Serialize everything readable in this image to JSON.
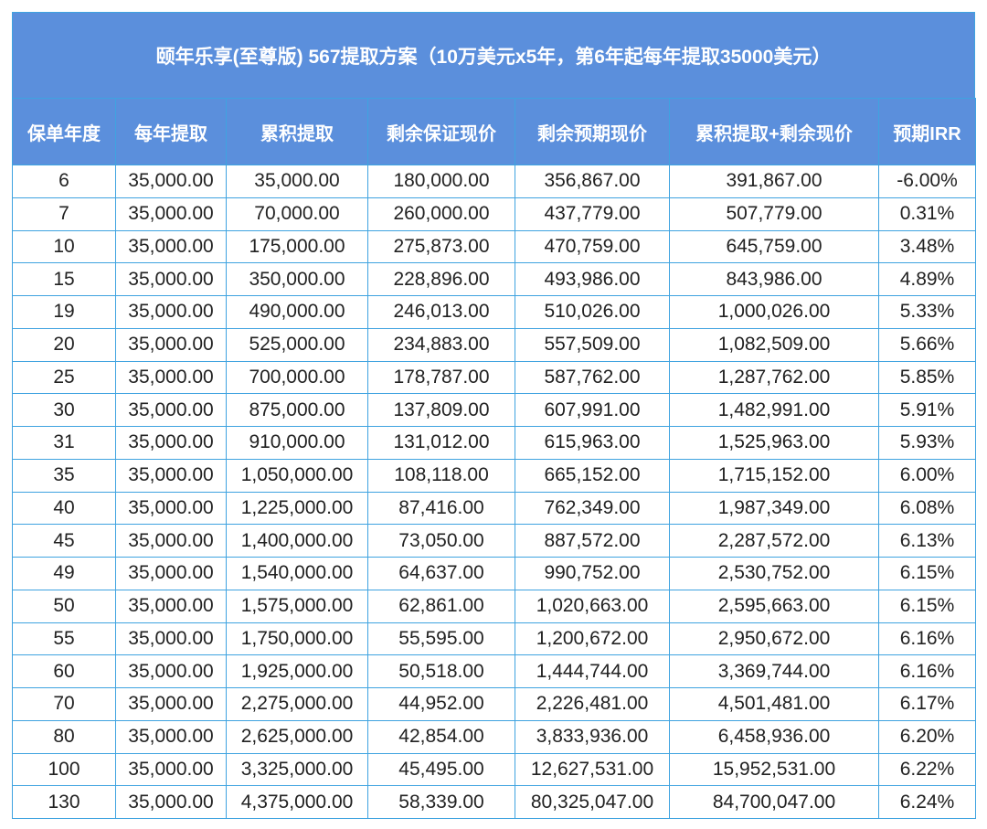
{
  "title": "颐年乐享(至尊版) 567提取方案（10万美元x5年，第6年起每年提取35000美元）",
  "columns": [
    "保单年度",
    "每年提取",
    "累积提取",
    "剩余保证现价",
    "剩余预期现价",
    "累积提取+剩余现价",
    "预期IRR"
  ],
  "rows": [
    [
      "6",
      "35,000.00",
      "35,000.00",
      "180,000.00",
      "356,867.00",
      "391,867.00",
      "-6.00%"
    ],
    [
      "7",
      "35,000.00",
      "70,000.00",
      "260,000.00",
      "437,779.00",
      "507,779.00",
      "0.31%"
    ],
    [
      "10",
      "35,000.00",
      "175,000.00",
      "275,873.00",
      "470,759.00",
      "645,759.00",
      "3.48%"
    ],
    [
      "15",
      "35,000.00",
      "350,000.00",
      "228,896.00",
      "493,986.00",
      "843,986.00",
      "4.89%"
    ],
    [
      "19",
      "35,000.00",
      "490,000.00",
      "246,013.00",
      "510,026.00",
      "1,000,026.00",
      "5.33%"
    ],
    [
      "20",
      "35,000.00",
      "525,000.00",
      "234,883.00",
      "557,509.00",
      "1,082,509.00",
      "5.66%"
    ],
    [
      "25",
      "35,000.00",
      "700,000.00",
      "178,787.00",
      "587,762.00",
      "1,287,762.00",
      "5.85%"
    ],
    [
      "30",
      "35,000.00",
      "875,000.00",
      "137,809.00",
      "607,991.00",
      "1,482,991.00",
      "5.91%"
    ],
    [
      "31",
      "35,000.00",
      "910,000.00",
      "131,012.00",
      "615,963.00",
      "1,525,963.00",
      "5.93%"
    ],
    [
      "35",
      "35,000.00",
      "1,050,000.00",
      "108,118.00",
      "665,152.00",
      "1,715,152.00",
      "6.00%"
    ],
    [
      "40",
      "35,000.00",
      "1,225,000.00",
      "87,416.00",
      "762,349.00",
      "1,987,349.00",
      "6.08%"
    ],
    [
      "45",
      "35,000.00",
      "1,400,000.00",
      "73,050.00",
      "887,572.00",
      "2,287,572.00",
      "6.13%"
    ],
    [
      "49",
      "35,000.00",
      "1,540,000.00",
      "64,637.00",
      "990,752.00",
      "2,530,752.00",
      "6.15%"
    ],
    [
      "50",
      "35,000.00",
      "1,575,000.00",
      "62,861.00",
      "1,020,663.00",
      "2,595,663.00",
      "6.15%"
    ],
    [
      "55",
      "35,000.00",
      "1,750,000.00",
      "55,595.00",
      "1,200,672.00",
      "2,950,672.00",
      "6.16%"
    ],
    [
      "60",
      "35,000.00",
      "1,925,000.00",
      "50,518.00",
      "1,444,744.00",
      "3,369,744.00",
      "6.16%"
    ],
    [
      "70",
      "35,000.00",
      "2,275,000.00",
      "44,952.00",
      "2,226,481.00",
      "4,501,481.00",
      "6.17%"
    ],
    [
      "80",
      "35,000.00",
      "2,625,000.00",
      "42,854.00",
      "3,833,936.00",
      "6,458,936.00",
      "6.20%"
    ],
    [
      "100",
      "35,000.00",
      "3,325,000.00",
      "45,495.00",
      "12,627,531.00",
      "15,952,531.00",
      "6.22%"
    ],
    [
      "130",
      "35,000.00",
      "4,375,000.00",
      "58,339.00",
      "80,325,047.00",
      "84,700,047.00",
      "6.24%"
    ]
  ],
  "colors": {
    "header_bg": "#5b8fdc",
    "border": "#3fa3e0",
    "header_text": "#ffffff"
  }
}
